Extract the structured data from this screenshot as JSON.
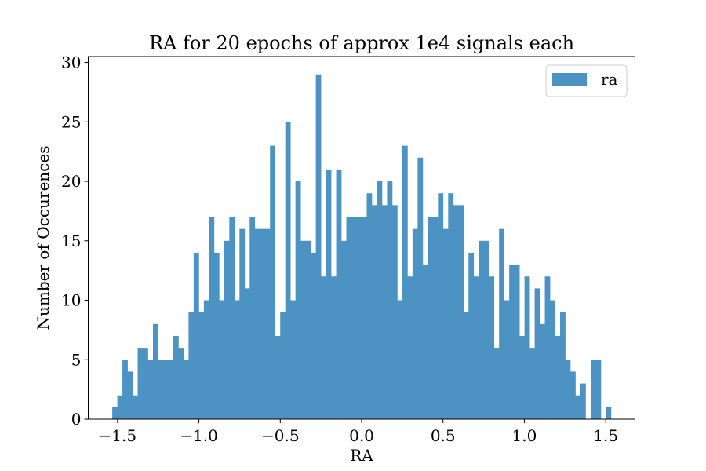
{
  "chart_data": {
    "type": "bar",
    "title": "RA for 20 epochs of approx 1e4 signals each",
    "xlabel": "RA",
    "ylabel": "Number of Occurences",
    "xlim": [
      -1.68,
      1.68
    ],
    "ylim": [
      0,
      30.5
    ],
    "xticks": [
      -1.5,
      -1.0,
      -0.5,
      0.0,
      0.5,
      1.0,
      1.5
    ],
    "xtick_labels": [
      "−1.5",
      "−1.0",
      "−0.5",
      "0.0",
      "0.5",
      "1.0",
      "1.5"
    ],
    "yticks": [
      0,
      5,
      10,
      15,
      20,
      25,
      30
    ],
    "ytick_labels": [
      "0",
      "5",
      "10",
      "15",
      "20",
      "25",
      "30"
    ],
    "legend": {
      "label": "ra",
      "position": "upper right"
    },
    "bar_color": "#4c92c3",
    "bin_range": [
      -1.5325,
      1.5325
    ],
    "series": [
      {
        "name": "ra",
        "values": [
          1,
          2,
          5,
          4,
          2,
          6,
          6,
          5,
          8,
          5,
          5,
          5,
          7,
          6,
          5,
          9,
          14,
          9,
          10,
          17,
          14,
          10,
          15,
          17,
          10,
          16,
          11,
          17,
          16,
          16,
          16,
          23,
          7,
          9,
          25,
          10,
          20,
          15,
          15,
          14,
          29,
          12,
          21,
          12,
          21,
          15,
          17,
          17,
          17,
          17,
          19,
          18,
          20,
          18,
          20,
          18,
          10,
          23,
          12,
          16,
          22,
          13,
          17,
          17,
          19,
          16,
          19,
          18,
          18,
          9,
          14,
          12,
          15,
          15,
          12,
          6,
          16,
          10,
          13,
          13,
          7,
          12,
          6,
          11,
          8,
          12,
          10,
          7,
          9,
          5,
          4,
          2,
          3,
          0,
          5,
          5,
          0,
          1
        ]
      }
    ]
  }
}
